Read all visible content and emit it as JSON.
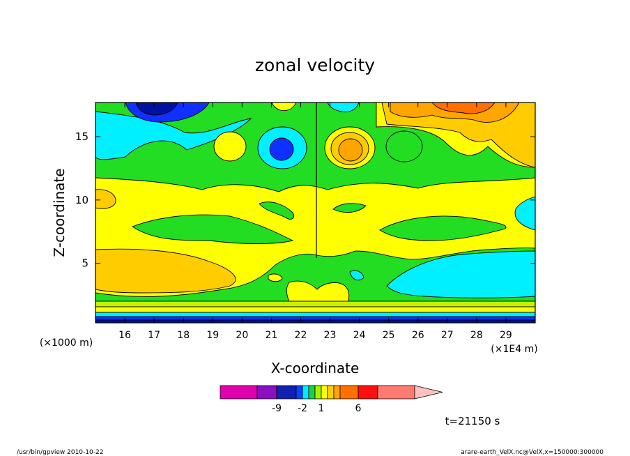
{
  "chart_data": {
    "type": "heatmap",
    "title": "zonal velocity",
    "xlabel": "X-coordinate",
    "ylabel": "Z-coordinate",
    "x_unit": "(×1E4 m)",
    "y_unit": "(×1000 m)",
    "xlim": [
      15,
      30
    ],
    "ylim": [
      0.3,
      17.7
    ],
    "x_ticks": [
      16,
      17,
      18,
      19,
      20,
      21,
      22,
      23,
      24,
      25,
      26,
      27,
      28,
      29
    ],
    "y_ticks": [
      5,
      10,
      15
    ],
    "x_tick_labels": [
      "16",
      "17",
      "18",
      "19",
      "20",
      "21",
      "22",
      "23",
      "24",
      "25",
      "26",
      "27",
      "28",
      "29"
    ],
    "y_tick_labels": [
      "5",
      "10",
      "15"
    ],
    "time_label": "t=21150 s",
    "colorbar": {
      "labels": [
        "-9",
        "-2",
        "1",
        "6"
      ],
      "bins": [
        {
          "color": "#e000b0"
        },
        {
          "color": "#8a10c0"
        },
        {
          "color": "#1020b0"
        },
        {
          "color": "#1040ff"
        },
        {
          "color": "#00e8ff"
        },
        {
          "color": "#20d040"
        },
        {
          "color": "#a8f000"
        },
        {
          "color": "#ffff00"
        },
        {
          "color": "#ffd000"
        },
        {
          "color": "#ffa500"
        },
        {
          "color": "#ff7000"
        },
        {
          "color": "#ff1010"
        },
        {
          "color": "#ff7b70"
        },
        {
          "color": "#ffc0c0"
        }
      ]
    },
    "field_colors": {
      "yellow": "#ffff00",
      "green": "#22dd22",
      "cyan": "#00f0ff",
      "gold": "#ffcc00",
      "orange": "#ffa500",
      "blue": "#1030ff",
      "darkblue": "#0010a0",
      "yellowgreen": "#c8f000"
    }
  },
  "footer": {
    "left": "/usr/bin/gpview   2010-10-22",
    "right": "arare-earth_VelX.nc@VelX,x=150000:300000"
  }
}
